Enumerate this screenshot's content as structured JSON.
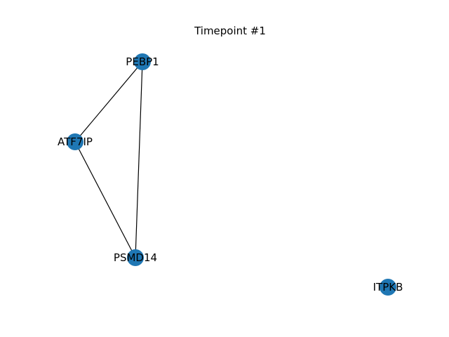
{
  "title": "Timepoint #1",
  "graph": {
    "node_color": "#1f77b4",
    "edge_color": "#000000",
    "label_color": "#000000",
    "nodes": [
      {
        "id": "PEBP1",
        "label": "PEBP1"
      },
      {
        "id": "ATF7IP",
        "label": "ATF7IP"
      },
      {
        "id": "PSMD14",
        "label": "PSMD14"
      },
      {
        "id": "ITPKB",
        "label": "ITPKB"
      }
    ],
    "edges": [
      {
        "source": "PEBP1",
        "target": "ATF7IP"
      },
      {
        "source": "PEBP1",
        "target": "PSMD14"
      },
      {
        "source": "ATF7IP",
        "target": "PSMD14"
      }
    ]
  }
}
